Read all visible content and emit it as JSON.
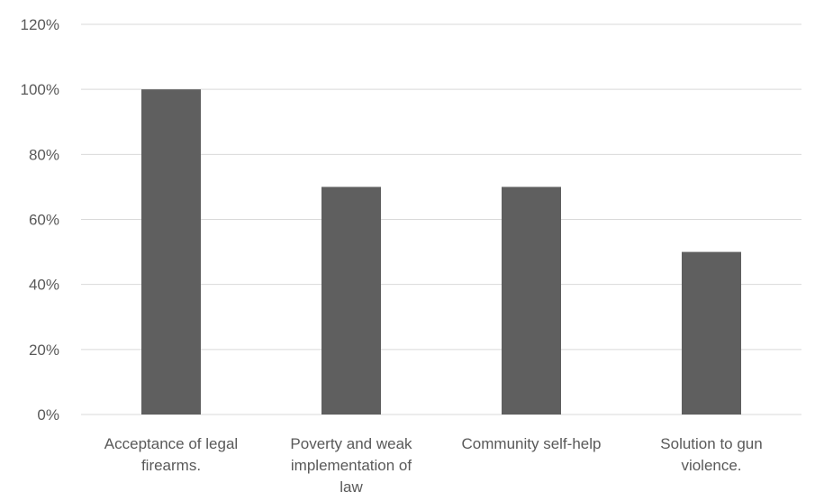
{
  "chart_data": {
    "type": "bar",
    "categories": [
      [
        "Acceptance of legal",
        "firearms."
      ],
      [
        "Poverty and weak",
        "implementation of",
        "law"
      ],
      [
        "Community self-help"
      ],
      [
        "Solution to gun",
        "violence."
      ]
    ],
    "values": [
      100,
      70,
      70,
      50
    ],
    "y_tick_labels": [
      "0%",
      "20%",
      "40%",
      "60%",
      "80%",
      "100%",
      "120%"
    ],
    "ylim": [
      0,
      120
    ],
    "y_step": 20,
    "grid": true,
    "legend": "none",
    "title": "",
    "xlabel": "",
    "ylabel": "",
    "colors": {
      "bar": "#5f5f5f",
      "grid": "#d9d9d9",
      "text": "#595959"
    }
  }
}
